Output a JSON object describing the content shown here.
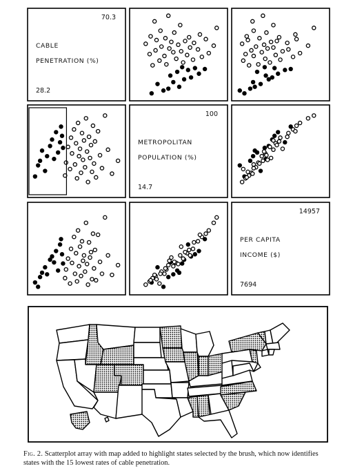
{
  "chart_data": {
    "type": "scatter",
    "variables": [
      {
        "label_line1": "CABLE",
        "label_line2": "PENETRATION (%)",
        "max": "70.3",
        "min": "28.2"
      },
      {
        "label_line1": "METROPOLITAN",
        "label_line2": "POPULATION (%)",
        "max": "100",
        "min": "14.7"
      },
      {
        "label_line1": "PER CAPITA",
        "label_line2": "INCOME ($)",
        "max": "14957",
        "min": "7694"
      }
    ],
    "points": [
      {
        "cable": 28.5,
        "metro": 30,
        "income": 8200,
        "selected": true
      },
      {
        "cable": 30.0,
        "metro": 42,
        "income": 7800,
        "selected": true
      },
      {
        "cable": 31.0,
        "metro": 47,
        "income": 8700,
        "selected": true
      },
      {
        "cable": 32.0,
        "metro": 58,
        "income": 9100,
        "selected": true
      },
      {
        "cable": 33.5,
        "metro": 36,
        "income": 9600,
        "selected": true
      },
      {
        "cable": 34.5,
        "metro": 52,
        "income": 8950,
        "selected": true
      },
      {
        "cable": 36.0,
        "metro": 63,
        "income": 10300,
        "selected": true
      },
      {
        "cable": 37.0,
        "metro": 70,
        "income": 10600,
        "selected": true
      },
      {
        "cable": 38.0,
        "metro": 49,
        "income": 10050,
        "selected": true
      },
      {
        "cable": 39.0,
        "metro": 78,
        "income": 11100,
        "selected": true
      },
      {
        "cable": 40.0,
        "metro": 56,
        "income": 9300,
        "selected": true
      },
      {
        "cable": 41.0,
        "metro": 67,
        "income": 11700,
        "selected": true
      },
      {
        "cable": 41.5,
        "metro": 84,
        "income": 12200,
        "selected": true
      },
      {
        "cable": 42.0,
        "metro": 74,
        "income": 10800,
        "selected": true
      },
      {
        "cable": 42.5,
        "metro": 61,
        "income": 9950,
        "selected": true
      },
      {
        "cable": 43.5,
        "metro": 31,
        "income": 8600,
        "selected": false
      },
      {
        "cable": 44.0,
        "metro": 45,
        "income": 9400,
        "selected": false
      },
      {
        "cable": 45.0,
        "metro": 62,
        "income": 10400,
        "selected": false
      },
      {
        "cable": 46.0,
        "metro": 38,
        "income": 8100,
        "selected": false
      },
      {
        "cable": 46.5,
        "metro": 72,
        "income": 11300,
        "selected": false
      },
      {
        "cable": 47.0,
        "metro": 55,
        "income": 10000,
        "selected": false
      },
      {
        "cable": 48.0,
        "metro": 81,
        "income": 12400,
        "selected": false
      },
      {
        "cable": 48.5,
        "metro": 43,
        "income": 9000,
        "selected": false
      },
      {
        "cable": 49.0,
        "metro": 66,
        "income": 10900,
        "selected": false
      },
      {
        "cable": 49.5,
        "metro": 28,
        "income": 8300,
        "selected": false
      },
      {
        "cable": 50.0,
        "metro": 88,
        "income": 13000,
        "selected": false
      },
      {
        "cable": 50.5,
        "metro": 52,
        "income": 9700,
        "selected": false
      },
      {
        "cable": 51.0,
        "metro": 60,
        "income": 11500,
        "selected": false
      },
      {
        "cable": 51.5,
        "metro": 34,
        "income": 8800,
        "selected": false
      },
      {
        "cable": 52.0,
        "metro": 77,
        "income": 12000,
        "selected": false
      },
      {
        "cable": 52.5,
        "metro": 48,
        "income": 10200,
        "selected": false
      },
      {
        "cable": 53.0,
        "metro": 69,
        "income": 10700,
        "selected": false
      },
      {
        "cable": 53.5,
        "metro": 40,
        "income": 9200,
        "selected": false
      },
      {
        "cable": 54.0,
        "metro": 93,
        "income": 13700,
        "selected": false
      },
      {
        "cable": 54.5,
        "metro": 57,
        "income": 9900,
        "selected": false
      },
      {
        "cable": 55.0,
        "metro": 24,
        "income": 8000,
        "selected": false
      },
      {
        "cable": 55.5,
        "metro": 73,
        "income": 11900,
        "selected": false
      },
      {
        "cable": 56.0,
        "metro": 50,
        "income": 10500,
        "selected": false
      },
      {
        "cable": 56.5,
        "metro": 64,
        "income": 11000,
        "selected": false
      },
      {
        "cable": 57.0,
        "metro": 35,
        "income": 8500,
        "selected": false
      },
      {
        "cable": 57.5,
        "metro": 85,
        "income": 12700,
        "selected": false
      },
      {
        "cable": 58.0,
        "metro": 44,
        "income": 9500,
        "selected": false
      },
      {
        "cable": 58.5,
        "metro": 68,
        "income": 11200,
        "selected": false
      },
      {
        "cable": 59.0,
        "metro": 29,
        "income": 8400,
        "selected": false
      },
      {
        "cable": 60.0,
        "metro": 79,
        "income": 12600,
        "selected": false
      },
      {
        "cable": 61.0,
        "metro": 53,
        "income": 10100,
        "selected": false
      },
      {
        "cable": 62.0,
        "metro": 39,
        "income": 9000,
        "selected": false
      },
      {
        "cable": 63.5,
        "metro": 96,
        "income": 14200,
        "selected": false
      },
      {
        "cable": 65.0,
        "metro": 59,
        "income": 10700,
        "selected": false
      },
      {
        "cable": 67.0,
        "metro": 33,
        "income": 8900,
        "selected": false
      },
      {
        "cable": 70.0,
        "metro": 47,
        "income": 9800,
        "selected": false
      }
    ]
  },
  "caption": {
    "fig_label": "Fig. 2.",
    "text": "Scatterplot array with map added to highlight states selected by the brush, which now identifies states with the 15 lowest rates of cable penetration."
  }
}
